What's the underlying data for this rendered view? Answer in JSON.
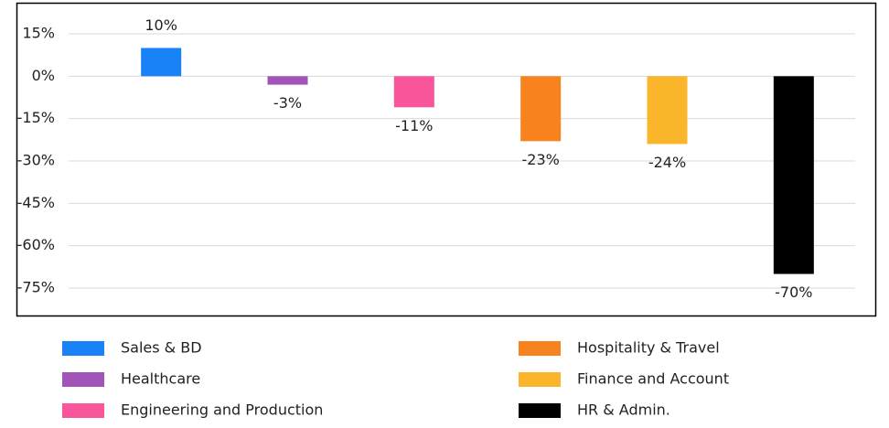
{
  "chart_data": {
    "type": "bar",
    "categories": [
      "Sales & BD",
      "Healthcare",
      "Engineering and Production",
      "Hospitality & Travel",
      "Finance and Account",
      "HR & Admin."
    ],
    "values": [
      10,
      -3,
      -11,
      -23,
      -24,
      -70
    ],
    "value_labels": [
      "10%",
      "-3%",
      "-11%",
      "-23%",
      "-24%",
      "-70%"
    ],
    "colors": [
      "#1a82f7",
      "#a155b9",
      "#f9559a",
      "#f7821e",
      "#fbb52a",
      "#000000"
    ],
    "ylim": [
      -75,
      15
    ],
    "yticks": [
      {
        "value": 15,
        "label": "15%"
      },
      {
        "value": 0,
        "label": "0%"
      },
      {
        "value": -15,
        "label": "-15%"
      },
      {
        "value": -30,
        "label": "-30%"
      },
      {
        "value": -45,
        "label": "-45%"
      },
      {
        "value": -60,
        "label": "-60%"
      },
      {
        "value": -75,
        "label": "-75%"
      }
    ],
    "grid": true,
    "legend": "bottom"
  }
}
